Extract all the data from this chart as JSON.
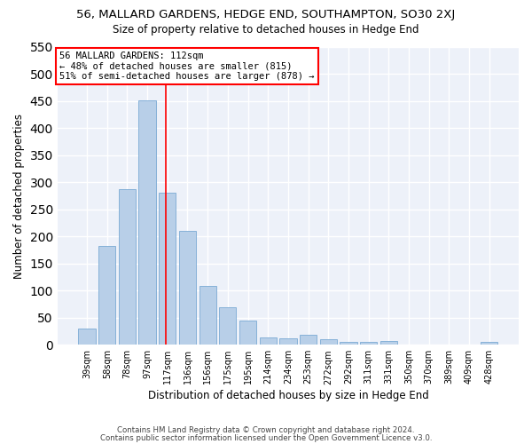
{
  "title": "56, MALLARD GARDENS, HEDGE END, SOUTHAMPTON, SO30 2XJ",
  "subtitle": "Size of property relative to detached houses in Hedge End",
  "xlabel": "Distribution of detached houses by size in Hedge End",
  "ylabel": "Number of detached properties",
  "categories": [
    "39sqm",
    "58sqm",
    "78sqm",
    "97sqm",
    "117sqm",
    "136sqm",
    "156sqm",
    "175sqm",
    "195sqm",
    "214sqm",
    "234sqm",
    "253sqm",
    "272sqm",
    "292sqm",
    "311sqm",
    "331sqm",
    "350sqm",
    "370sqm",
    "389sqm",
    "409sqm",
    "428sqm"
  ],
  "values": [
    30,
    183,
    288,
    452,
    281,
    211,
    109,
    70,
    45,
    14,
    11,
    19,
    10,
    5,
    5,
    7,
    0,
    0,
    0,
    0,
    6
  ],
  "bar_color": "#b8cfe8",
  "bar_edge_color": "#7aaad4",
  "vline_color": "red",
  "vline_x_index": 4,
  "annotation_text": "56 MALLARD GARDENS: 112sqm\n← 48% of detached houses are smaller (815)\n51% of semi-detached houses are larger (878) →",
  "annotation_box_color": "white",
  "annotation_box_edge_color": "red",
  "ylim": [
    0,
    550
  ],
  "yticks": [
    0,
    50,
    100,
    150,
    200,
    250,
    300,
    350,
    400,
    450,
    500,
    550
  ],
  "footer1": "Contains HM Land Registry data © Crown copyright and database right 2024.",
  "footer2": "Contains public sector information licensed under the Open Government Licence v3.0.",
  "bg_color": "#edf1f9",
  "grid_color": "white"
}
